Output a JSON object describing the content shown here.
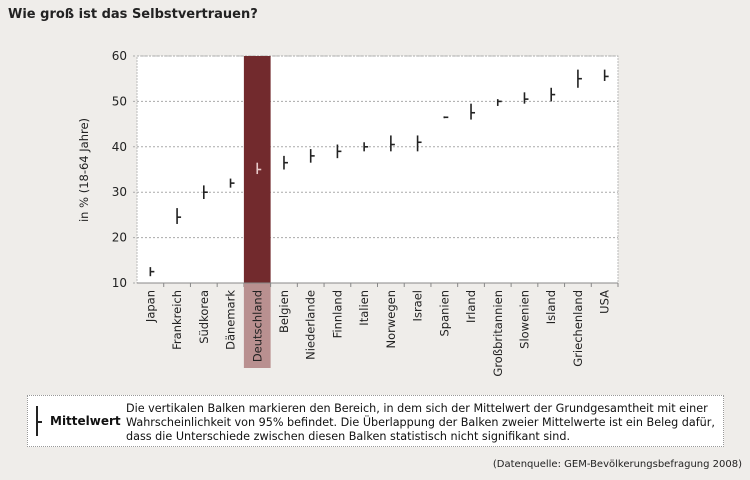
{
  "title": "Wie groß ist das Selbstvertrauen?",
  "legend": {
    "label": "Mittelwert",
    "text": "Die vertikalen Balken markieren den Bereich, in dem sich der Mittelwert der Grundgesamtheit mit einer Wahrscheinlichkeit von 95% befindet. Die Überlappung der Balken zweier Mittelwerte ist ein Beleg dafür, dass die Unterschiede zwischen diesen Balken statistisch nicht signifikant sind."
  },
  "source": "(Datenquelle: GEM-Bevölkerungsbefragung 2008)",
  "colors": {
    "highlight": "#722a2d",
    "highlight_label": "#b99090",
    "marks": "#222222"
  },
  "chart_data": {
    "type": "errorbar",
    "title": "Wie groß ist das Selbstvertrauen?",
    "ylabel": "in % (18-64 Jahre)",
    "xlabel": "",
    "ylim": [
      10,
      60
    ],
    "yticks": [
      10,
      20,
      30,
      40,
      50,
      60
    ],
    "grid": true,
    "highlight": "Deutschland",
    "categories": [
      "Japan",
      "Frankreich",
      "Südkorea",
      "Dänemark",
      "Deutschland",
      "Belgien",
      "Niederlande",
      "Finnland",
      "Italien",
      "Norwegen",
      "Israel",
      "Spanien",
      "Irland",
      "Großbritannien",
      "Slowenien",
      "Island",
      "Griechenland",
      "USA"
    ],
    "mean": [
      12.5,
      24.5,
      30,
      32,
      35,
      36.5,
      38,
      39,
      40,
      40.5,
      41,
      46.5,
      47.5,
      50,
      50.5,
      51.5,
      55,
      55.5
    ],
    "lower": [
      11.5,
      23,
      28.5,
      31,
      34,
      35,
      36.5,
      37.5,
      39,
      39,
      39,
      46.3,
      46,
      49,
      49.5,
      50,
      53,
      54.5
    ],
    "upper": [
      13.5,
      26.5,
      31.5,
      33,
      36.5,
      38,
      39.5,
      40.5,
      41,
      42.5,
      42.5,
      46.7,
      49.5,
      50.5,
      52,
      53,
      57,
      57
    ]
  }
}
